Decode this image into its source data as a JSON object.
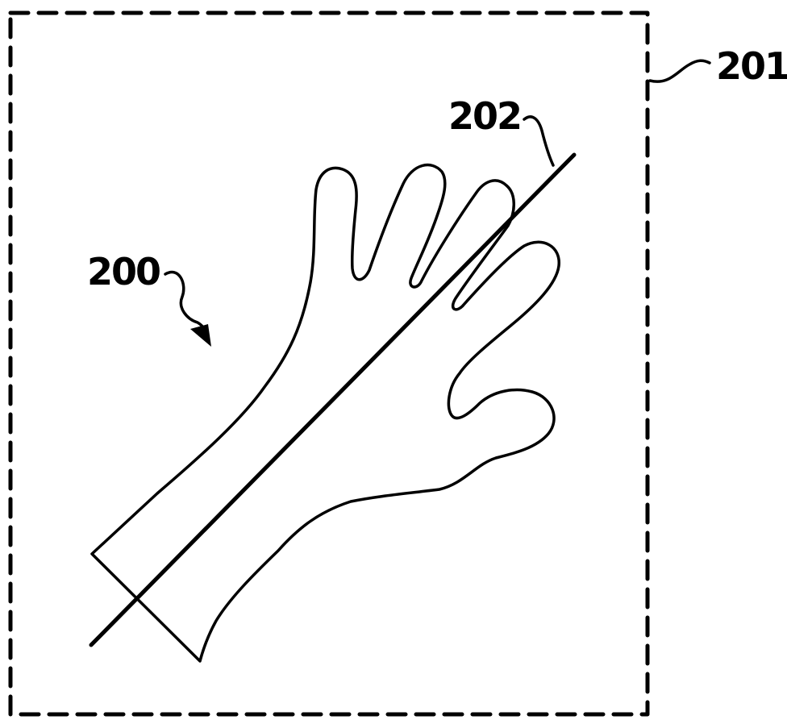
{
  "figure": {
    "labels": {
      "hand": "200",
      "boundary": "201",
      "axis": "202"
    },
    "line_color": "#000000",
    "background_color": "#ffffff"
  }
}
